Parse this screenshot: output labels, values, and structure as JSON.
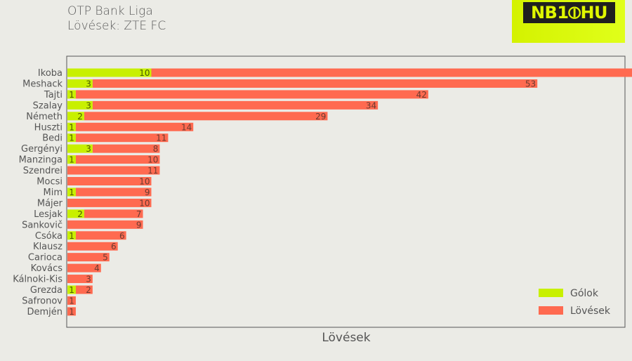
{
  "header": {
    "title": "OTP Bank Liga",
    "subtitle": "Lövések: ZTE FC",
    "logo_text": "NB1⦶HU"
  },
  "colors": {
    "goals": "#c8f000",
    "shots": "#ff6a50",
    "background": "#ebebe6",
    "text": "#555555"
  },
  "chart_data": {
    "type": "bar",
    "orientation": "horizontal",
    "stacked": true,
    "categories": [
      "Ikoba",
      "Meshack",
      "Tajti",
      "Szalay",
      "Németh",
      "Huszti",
      "Bedi",
      "Gergényi",
      "Manzinga",
      "Szendrei",
      "Mocsi",
      "Mim",
      "Májer",
      "Lesjak",
      "Sankovič",
      "Csóka",
      "Klausz",
      "Carioca",
      "Kovács",
      "Kálnoki-Kis",
      "Grezda",
      "Safronov",
      "Demjén"
    ],
    "series": [
      {
        "name": "Gólok",
        "values": [
          10,
          3,
          1,
          3,
          2,
          1,
          1,
          3,
          1,
          0,
          0,
          1,
          0,
          2,
          0,
          1,
          0,
          0,
          0,
          0,
          1,
          0,
          0
        ]
      },
      {
        "name": "Lövések",
        "values": [
          63,
          53,
          42,
          34,
          29,
          14,
          11,
          8,
          10,
          11,
          10,
          9,
          10,
          7,
          9,
          6,
          6,
          5,
          4,
          3,
          2,
          1,
          1
        ]
      }
    ],
    "xlabel": "Lövések",
    "ylabel": "",
    "xlim": [
      0,
      76
    ],
    "grid": false,
    "legend_position": "bottom-right"
  }
}
